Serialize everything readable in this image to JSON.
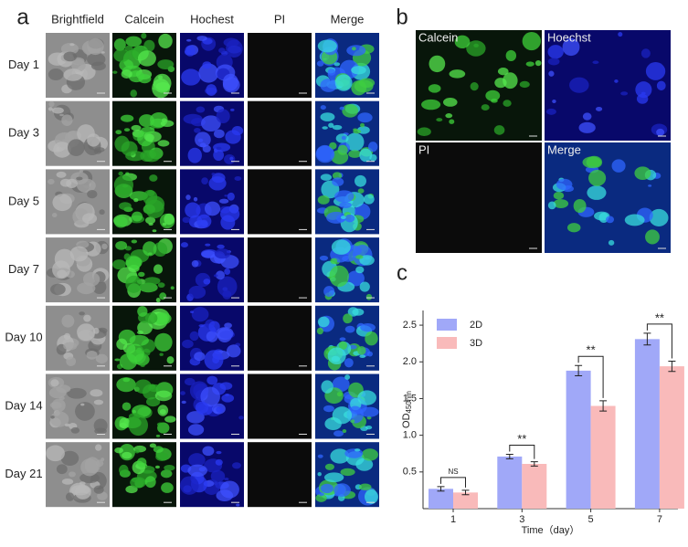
{
  "panel_a": {
    "letter": "a",
    "columns": [
      "Brightfield",
      "Calcein",
      "Hochest",
      "PI",
      "Merge"
    ],
    "rows": [
      "Day 1",
      "Day 3",
      "Day 5",
      "Day 7",
      "Day 10",
      "Day 14",
      "Day 21"
    ]
  },
  "panel_b": {
    "letter": "b",
    "labels": [
      "Calcein",
      "Hoechst",
      "PI",
      "Merge"
    ]
  },
  "chart_data": {
    "type": "bar",
    "letter": "c",
    "categories": [
      "1",
      "3",
      "5",
      "7"
    ],
    "x_label": "Time（day）",
    "y_label": "OD",
    "y_label_sub": "450nm",
    "series": [
      {
        "name": "2D",
        "color": "#a0a8f8",
        "values": [
          0.27,
          0.71,
          1.88,
          2.31
        ],
        "errors": [
          0.03,
          0.03,
          0.07,
          0.08
        ]
      },
      {
        "name": "3D",
        "color": "#f9baba",
        "values": [
          0.22,
          0.61,
          1.4,
          1.94
        ],
        "errors": [
          0.03,
          0.03,
          0.07,
          0.07
        ]
      }
    ],
    "significance": [
      "NS",
      "**",
      "**",
      "**"
    ],
    "ylim": [
      0,
      2.7
    ],
    "yticks": [
      0.5,
      {
        "value": 1,
        "label": "1.0"
      },
      1.5,
      {
        "value": 2,
        "label": "2.0"
      },
      2.5
    ]
  }
}
